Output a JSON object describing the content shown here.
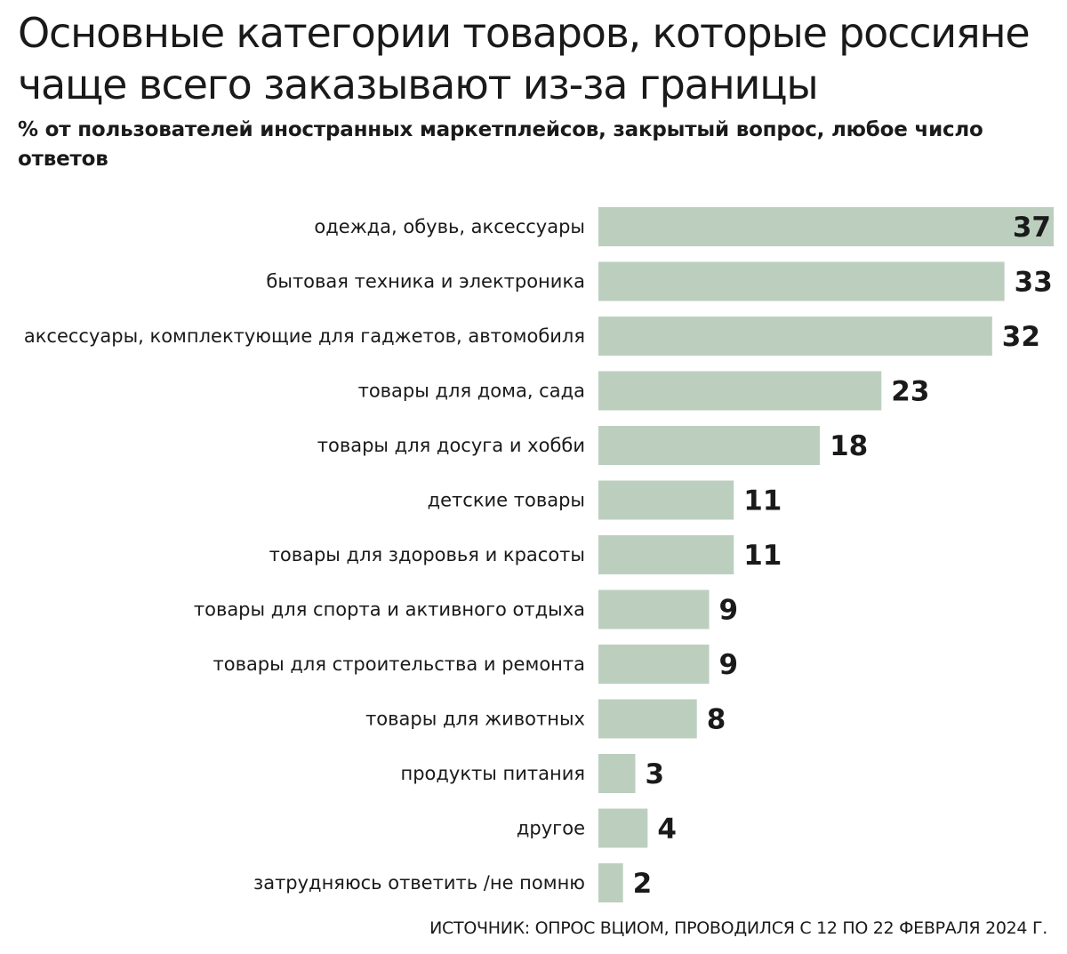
{
  "chart_data": {
    "type": "bar",
    "orientation": "horizontal",
    "title": "Основные категории товаров, которые россияне чаще всего заказывают из-за границы",
    "subtitle": "% от пользователей иностранных маркетплейсов, закрытый вопрос, любое число ответов",
    "categories": [
      "одежда, обувь, аксессуары",
      "бытовая техника и электроника",
      "аксессуары, комплектующие для гаджетов, автомобиля",
      "товары для дома, сада",
      "товары для досуга и хобби",
      "детские товары",
      "товары для здоровья и красоты",
      "товары для спорта и активного отдыха",
      "товары для строительства и ремонта",
      "товары для животных",
      "продукты питания",
      "другое",
      "затрудняюсь ответить /не помню"
    ],
    "values": [
      37,
      33,
      32,
      23,
      18,
      11,
      11,
      9,
      9,
      8,
      3,
      4,
      2
    ],
    "xlim": [
      0,
      37
    ],
    "grid": false,
    "legend": "none",
    "bar_color": "#bccfbf",
    "data_labels": true
  },
  "source": "ИСТОЧНИК: ОПРОС ВЦИОМ, ПРОВОДИЛСЯ С 12 ПО 22 ФЕВРАЛЯ 2024 Г."
}
